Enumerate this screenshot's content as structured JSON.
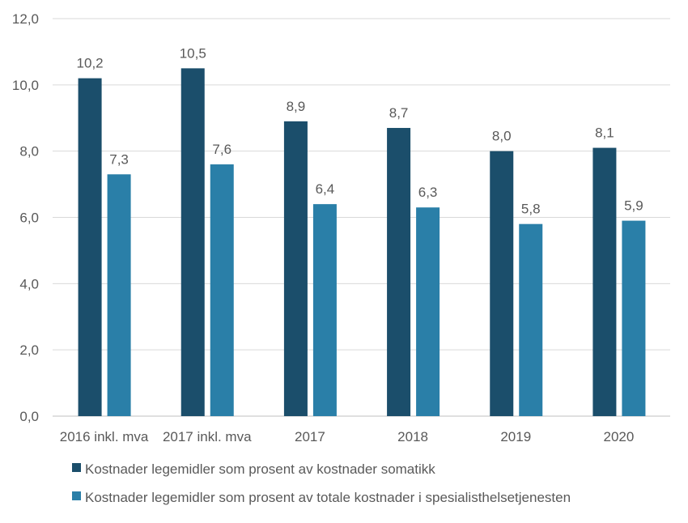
{
  "chart_data": {
    "type": "bar",
    "categories": [
      "2016 inkl. mva",
      "2017 inkl. mva",
      "2017",
      "2018",
      "2019",
      "2020"
    ],
    "series": [
      {
        "name": "Kostnader legemidler som prosent av kostnader somatikk",
        "values": [
          10.2,
          10.5,
          8.9,
          8.7,
          8.0,
          8.1
        ],
        "labels": [
          "10,2",
          "10,5",
          "8,9",
          "8,7",
          "8,0",
          "8,1"
        ],
        "color": "#1b4e6b"
      },
      {
        "name": "Kostnader legemidler som prosent av totale kostnader i spesialisthelsetjenesten",
        "values": [
          7.3,
          7.6,
          6.4,
          6.3,
          5.8,
          5.9
        ],
        "labels": [
          "7,3",
          "7,6",
          "6,4",
          "6,3",
          "5,8",
          "5,9"
        ],
        "color": "#2a7fa8"
      }
    ],
    "yticks": [
      "0,0",
      "2,0",
      "4,0",
      "6,0",
      "8,0",
      "10,0",
      "12,0"
    ],
    "ylim": [
      0,
      12
    ],
    "grid": true,
    "legend": "bottom",
    "title": "",
    "xlabel": "",
    "ylabel": ""
  }
}
